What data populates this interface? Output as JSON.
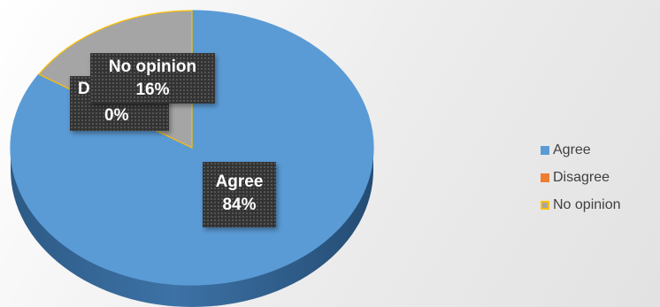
{
  "chart_data": {
    "type": "pie",
    "title": "",
    "categories": [
      "Agree",
      "Disagree",
      "No opinion"
    ],
    "values": [
      84,
      0,
      16
    ],
    "labels": [
      {
        "name": "Agree",
        "percent": "84%"
      },
      {
        "name": "D",
        "percent": "0%"
      },
      {
        "name": "No opinion",
        "percent": "16%"
      }
    ],
    "colors": [
      "#5b9bd5",
      "#ed7d31",
      "#a5a5a5"
    ],
    "slice_borders": [
      "#5b9bd5",
      "#ed7d31",
      "#ffc000"
    ],
    "style": "3d",
    "legend": {
      "position": "right",
      "items": [
        "Agree",
        "Disagree",
        "No opinion"
      ]
    }
  }
}
